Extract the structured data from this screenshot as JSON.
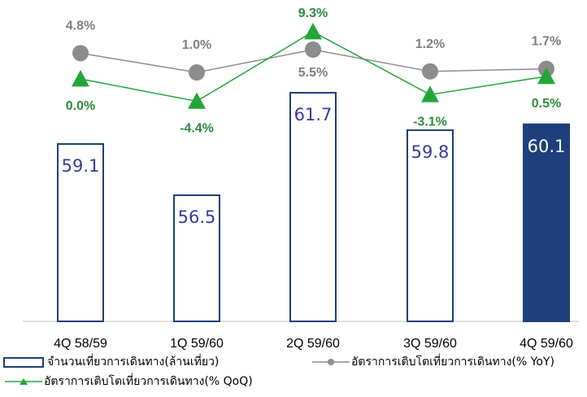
{
  "chart_data": {
    "type": "bar",
    "categories": [
      "4Q 58/59",
      "1Q 59/60",
      "2Q 59/60",
      "3Q 59/60",
      "4Q 59/60"
    ],
    "series": [
      {
        "name": "จำนวนเที่ยวการเดินทาง(ล้านเที่ยว)",
        "type": "bar",
        "values": [
          59.1,
          56.5,
          61.7,
          59.8,
          60.1
        ],
        "labels": [
          "59.1",
          "56.5",
          "61.7",
          "59.8",
          "60.1"
        ],
        "highlighted_index": 4
      },
      {
        "name": "อัตราการเติบโตเที่ยวการเดินทาง(% YoY)",
        "type": "line",
        "values": [
          4.8,
          1.0,
          5.5,
          1.2,
          1.7
        ],
        "labels": [
          "4.8%",
          "1.0%",
          "5.5%",
          "1.2%",
          "1.7%"
        ]
      },
      {
        "name": "อัตราการเติบโตเที่ยวการเดินทาง(% QoQ)",
        "type": "line",
        "values": [
          0.0,
          -4.4,
          9.3,
          -3.1,
          0.5
        ],
        "labels": [
          "0.0%",
          "-4.4%",
          "9.3%",
          "-3.1%",
          "0.5%"
        ]
      }
    ],
    "colors": {
      "bar_outline": "#1f3f7a",
      "bar_fill_highlight": "#1f3f7a",
      "bar_label": "#3a3a9a",
      "yoy": "#8c8c8c",
      "yoy_label": "#7f7f7f",
      "qoq": "#22a638",
      "qoq_label": "#2e8b3e"
    },
    "legend_position": "bottom"
  }
}
